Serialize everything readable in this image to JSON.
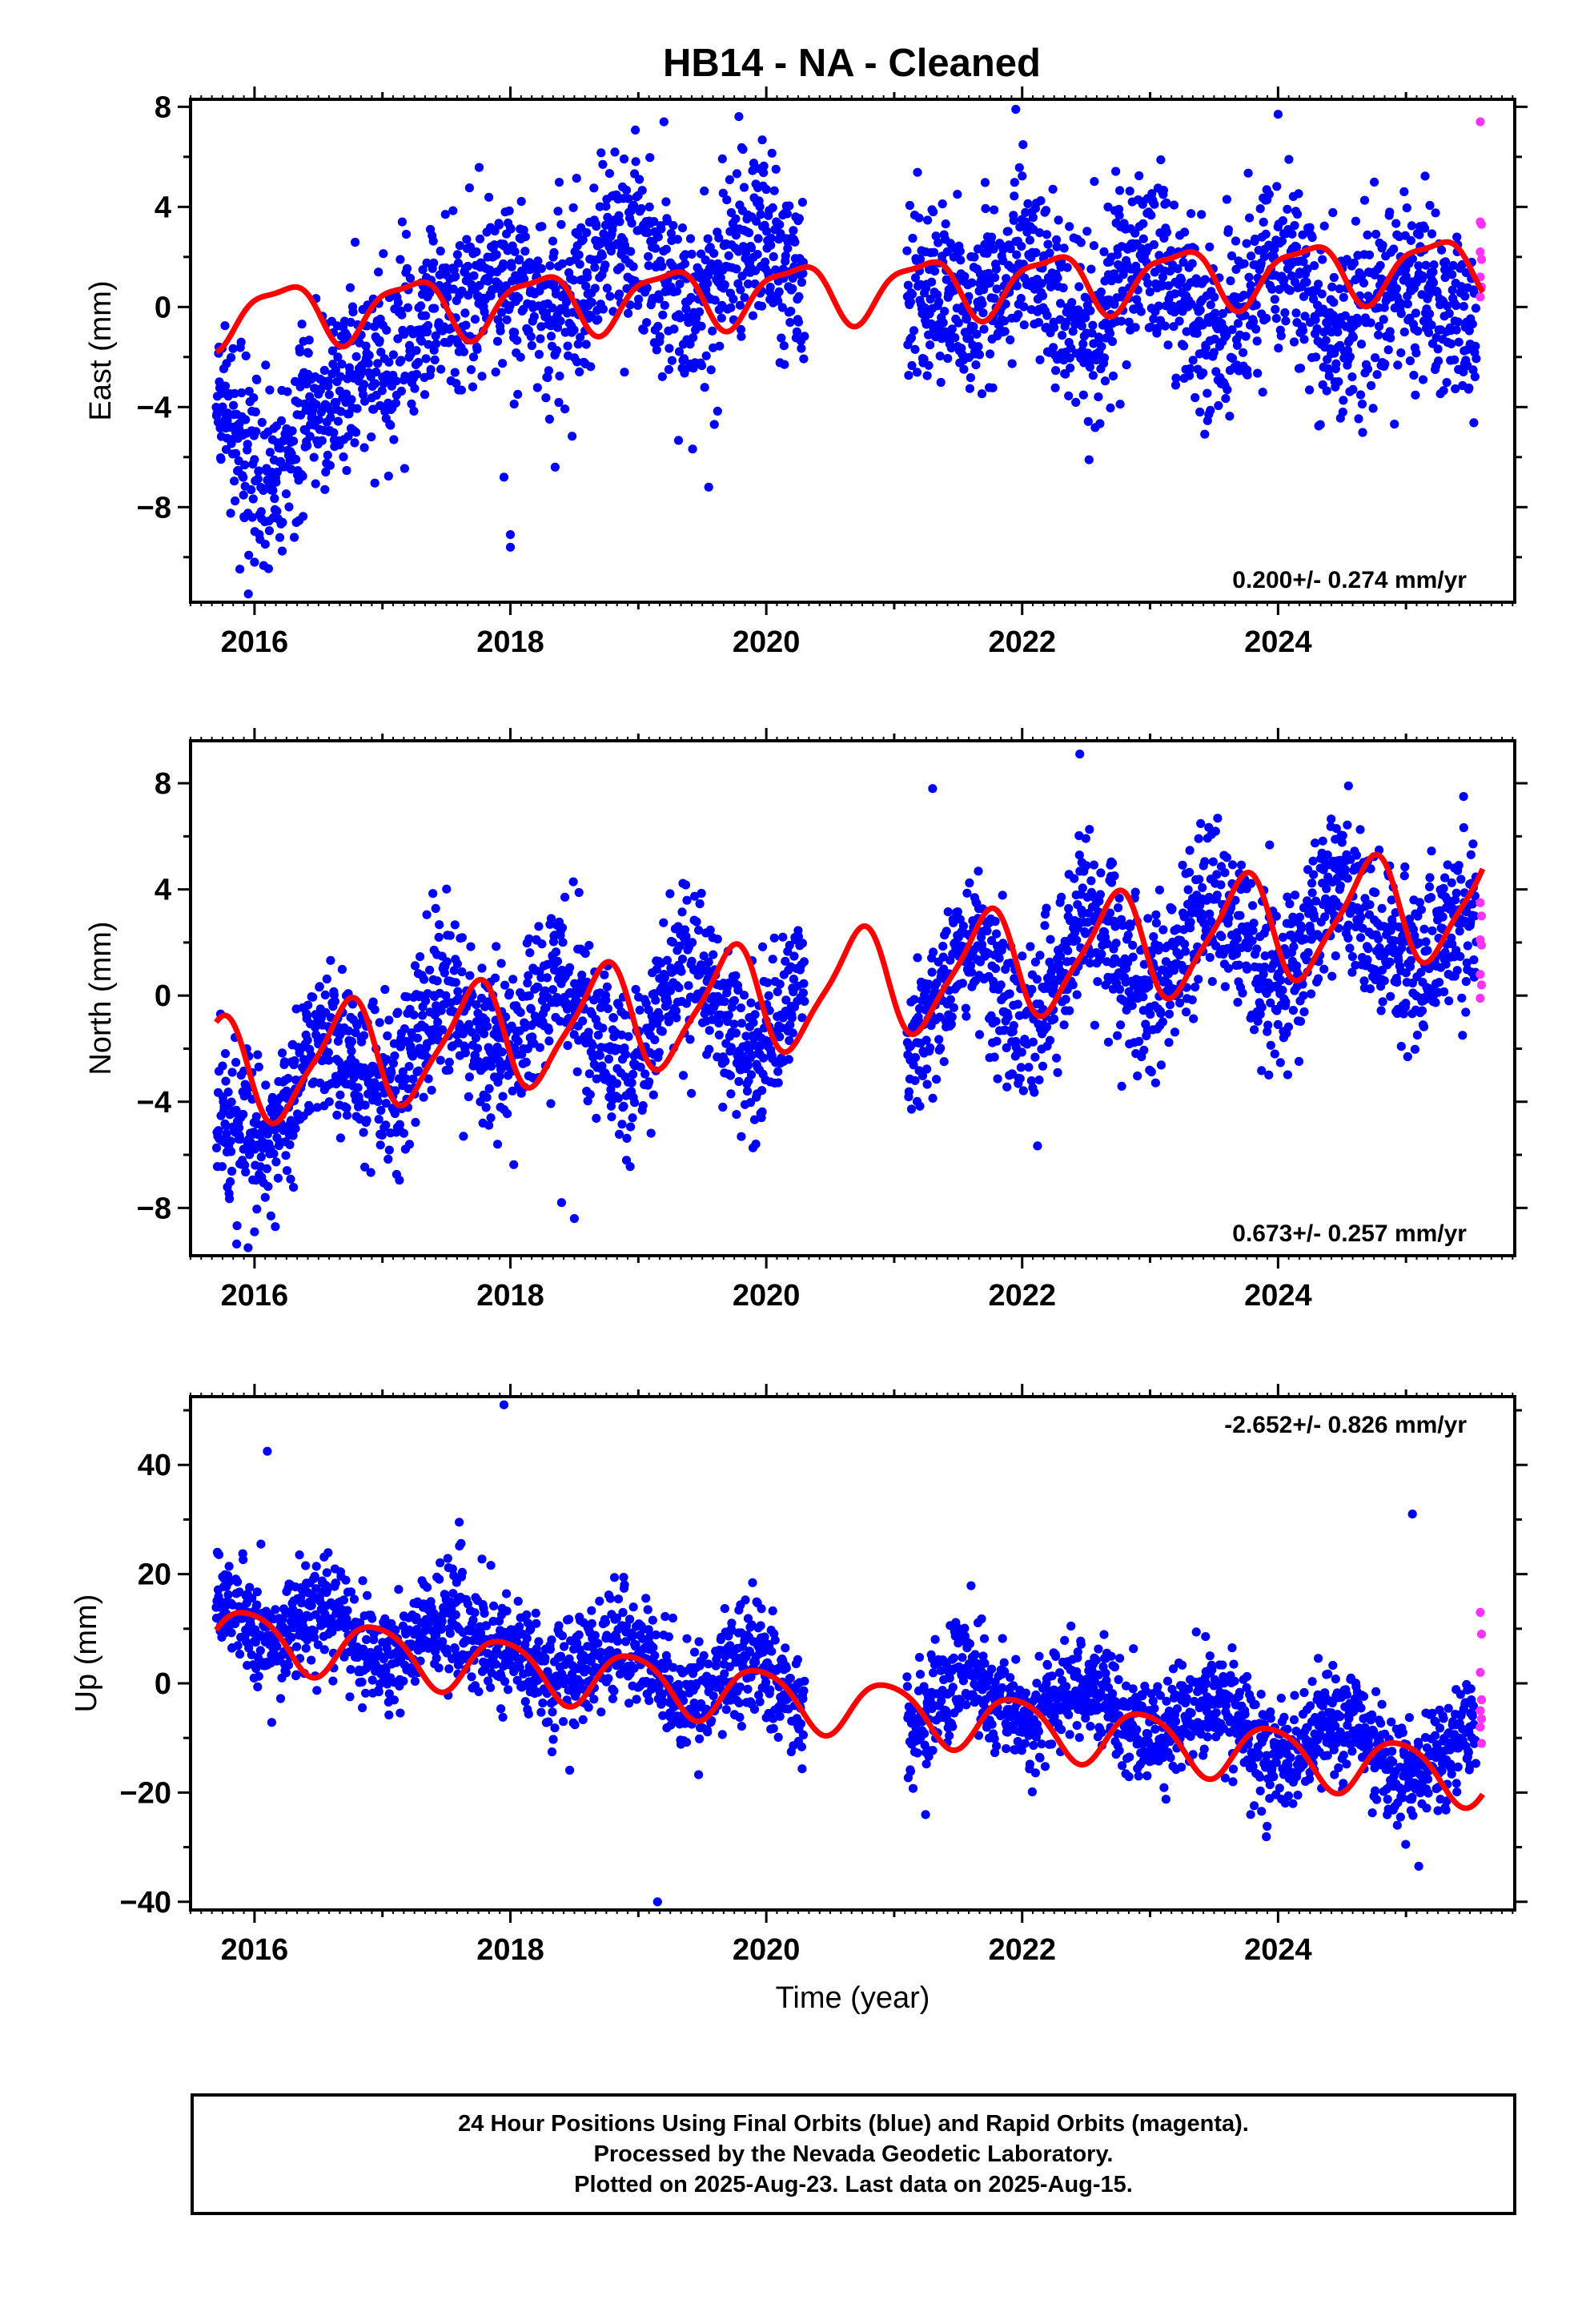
{
  "title": "HB14  - NA - Cleaned",
  "footer": {
    "line1": "24 Hour Positions Using Final Orbits (blue) and Rapid Orbits (magenta).",
    "line2": "Processed by the Nevada Geodetic Laboratory.",
    "line3": "Plotted on 2025-Aug-23. Last data on 2025-Aug-15."
  },
  "colors": {
    "final": "#0000ff",
    "rapid": "#ff33ff",
    "model": "#ff0000"
  },
  "chart_data": [
    {
      "type": "scatter",
      "component": "east",
      "ylabel": "East (mm)",
      "xlabel": "",
      "xlim": [
        2015.5,
        2025.85
      ],
      "ylim": [
        -11.8,
        8.3
      ],
      "yticks": [
        8,
        4,
        0,
        -4,
        -8
      ],
      "xticks": [
        2016,
        2018,
        2020,
        2022,
        2024
      ],
      "rate_label": "0.200+/- 0.274 mm/yr",
      "rate_position": "bottom-right",
      "trend": {
        "a0": -0.3,
        "slope": 0.2,
        "amp1": 1.15,
        "phase1": 0.96,
        "amp2": 0.35,
        "phase2": 0.3
      },
      "segments": [
        {
          "x": [
            2015.7,
            2016.1,
            2016.5,
            2017.0,
            2017.5,
            2017.9
          ],
          "y": [
            -4,
            -7,
            -4,
            -2,
            0,
            1
          ]
        },
        {
          "x": [
            2017.9,
            2018.4,
            2018.9,
            2019.4,
            2019.9,
            2020.3
          ],
          "y": [
            1,
            0,
            3,
            0,
            3,
            1
          ]
        },
        {
          "x": [
            2021.1,
            2021.6,
            2022.0,
            2022.5,
            2023.0,
            2023.5,
            2024.0,
            2024.5,
            2025.0,
            2025.55
          ],
          "y": [
            1,
            0,
            2,
            -1,
            2,
            -1,
            2,
            -1,
            1,
            -1
          ]
        }
      ],
      "scatter": 1.8,
      "outliers": [
        [
          2018.0,
          -9.1
        ],
        [
          2018.0,
          -9.6
        ],
        [
          2017.95,
          -6.8
        ],
        [
          2019.55,
          -7.2
        ],
        [
          2018.35,
          -6.4
        ],
        [
          2021.95,
          7.9
        ],
        [
          2024.0,
          7.7
        ],
        [
          2019.2,
          7.4
        ],
        [
          2016.0,
          -10.2
        ]
      ],
      "rapid": [
        [
          2025.58,
          7.4
        ],
        [
          2025.58,
          3.4
        ],
        [
          2025.59,
          3.3
        ],
        [
          2025.58,
          2.2
        ],
        [
          2025.59,
          1.9
        ],
        [
          2025.58,
          1.2
        ],
        [
          2025.59,
          0.8
        ],
        [
          2025.58,
          0.4
        ]
      ]
    },
    {
      "type": "scatter",
      "component": "north",
      "ylabel": "North (mm)",
      "xlabel": "",
      "xlim": [
        2015.5,
        2025.85
      ],
      "ylim": [
        -9.8,
        9.6
      ],
      "yticks": [
        8,
        4,
        0,
        -4,
        -8
      ],
      "xticks": [
        2016,
        2018,
        2020,
        2022,
        2024
      ],
      "rate_label": "0.673+/- 0.257 mm/yr",
      "rate_position": "bottom-right",
      "trend": {
        "a0": -3.0,
        "slope": 0.673,
        "amp1": 2.0,
        "phase1": 0.46,
        "amp2": 0.45,
        "phase2": 0.2
      },
      "segments": [
        {
          "x": [
            2015.7,
            2016.1,
            2016.5,
            2017.0,
            2017.5,
            2017.9
          ],
          "y": [
            -4.5,
            -5.5,
            -1.5,
            -3.5,
            0,
            -2
          ]
        },
        {
          "x": [
            2017.9,
            2018.4,
            2018.9,
            2019.4,
            2019.9,
            2020.3
          ],
          "y": [
            -2,
            0.5,
            -3,
            1.5,
            -2.5,
            1
          ]
        },
        {
          "x": [
            2021.1,
            2021.6,
            2022.0,
            2022.5,
            2023.0,
            2023.5,
            2024.0,
            2024.5,
            2025.0,
            2025.55
          ],
          "y": [
            -2,
            2,
            -1.5,
            3,
            0,
            3.5,
            0.5,
            4,
            1,
            3
          ]
        }
      ],
      "scatter": 1.5,
      "outliers": [
        [
          2018.4,
          -7.8
        ],
        [
          2018.5,
          -8.4
        ],
        [
          2022.45,
          9.1
        ],
        [
          2021.3,
          7.8
        ],
        [
          2017.9,
          -5.6
        ],
        [
          2015.95,
          -9.5
        ],
        [
          2016.0,
          -8.9
        ],
        [
          2024.55,
          7.9
        ],
        [
          2025.45,
          7.5
        ]
      ],
      "rapid": [
        [
          2025.58,
          3.5
        ],
        [
          2025.59,
          3.0
        ],
        [
          2025.58,
          2.1
        ],
        [
          2025.59,
          1.9
        ],
        [
          2025.58,
          0.8
        ],
        [
          2025.59,
          0.4
        ],
        [
          2025.58,
          -0.1
        ]
      ]
    },
    {
      "type": "scatter",
      "component": "up",
      "ylabel": "Up (mm)",
      "xlabel": "Time (year)",
      "xlim": [
        2015.5,
        2025.85
      ],
      "ylim": [
        -41.5,
        52.5
      ],
      "yticks": [
        40,
        20,
        0,
        -20,
        -40
      ],
      "xticks": [
        2016,
        2018,
        2020,
        2022,
        2024
      ],
      "rate_label": "-2.652+/- 0.826 mm/yr",
      "rate_position": "top-right",
      "trend": {
        "a0": 9.0,
        "slope": -2.652,
        "amp1": 5.2,
        "phase1": 0.7,
        "amp2": 0.8,
        "phase2": 0.1
      },
      "segments": [
        {
          "x": [
            2015.7,
            2016.1,
            2016.5,
            2017.0,
            2017.5,
            2017.9
          ],
          "y": [
            17,
            7,
            14,
            5,
            12,
            5
          ]
        },
        {
          "x": [
            2017.9,
            2018.4,
            2018.9,
            2019.4,
            2019.9,
            2020.3
          ],
          "y": [
            5,
            1,
            8,
            -3,
            5,
            -4
          ]
        },
        {
          "x": [
            2021.1,
            2021.6,
            2022.0,
            2022.5,
            2023.0,
            2023.5,
            2024.0,
            2024.5,
            2025.0,
            2025.55
          ],
          "y": [
            -8,
            2,
            -7,
            0,
            -10,
            -3,
            -14,
            -7,
            -17,
            -9
          ]
        }
      ],
      "scatter": 5.0,
      "outliers": [
        [
          2017.95,
          51.0
        ],
        [
          2016.1,
          42.5
        ],
        [
          2019.15,
          -40.0
        ],
        [
          2025.05,
          31.0
        ],
        [
          2017.6,
          29.5
        ],
        [
          2025.1,
          -33.5
        ],
        [
          2016.05,
          25.5
        ]
      ],
      "rapid": [
        [
          2025.58,
          13.0
        ],
        [
          2025.59,
          9.0
        ],
        [
          2025.58,
          2.0
        ],
        [
          2025.59,
          -3.0
        ],
        [
          2025.58,
          -5.0
        ],
        [
          2025.59,
          -6.5
        ],
        [
          2025.58,
          -8.0
        ],
        [
          2025.59,
          -11.0
        ]
      ]
    }
  ]
}
